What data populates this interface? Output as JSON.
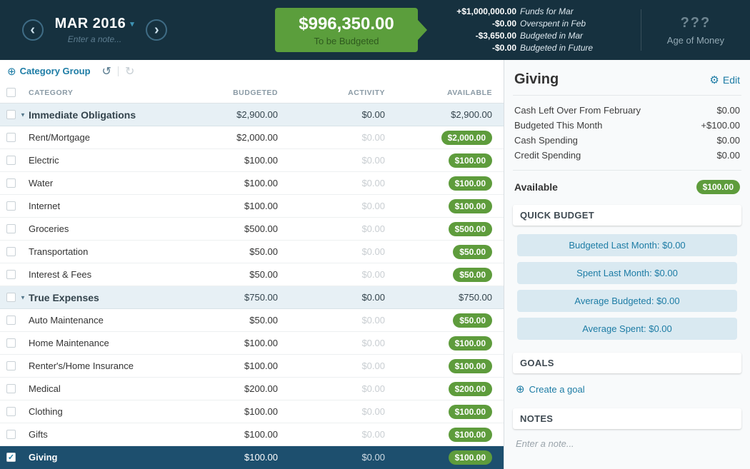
{
  "header": {
    "month_label": "MAR 2016",
    "note_placeholder": "Enter a note...",
    "tbb_amount": "$996,350.00",
    "tbb_label": "To be Budgeted",
    "breakdown": [
      {
        "amount": "+$1,000,000.00",
        "label": "Funds for Mar"
      },
      {
        "amount": "-$0.00",
        "label": "Overspent in Feb"
      },
      {
        "amount": "-$3,650.00",
        "label": "Budgeted in Mar"
      },
      {
        "amount": "-$0.00",
        "label": "Budgeted in Future"
      }
    ],
    "age_of_money_value": "???",
    "age_of_money_label": "Age of Money"
  },
  "toolbar": {
    "add_group_label": "Category Group"
  },
  "table": {
    "columns": {
      "category": "CATEGORY",
      "budgeted": "BUDGETED",
      "activity": "ACTIVITY",
      "available": "AVAILABLE"
    },
    "rows": [
      {
        "type": "group",
        "name": "Immediate Obligations",
        "budgeted": "$2,900.00",
        "activity": "$0.00",
        "available": "$2,900.00"
      },
      {
        "type": "category",
        "name": "Rent/Mortgage",
        "budgeted": "$2,000.00",
        "activity": "$0.00",
        "available": "$2,000.00"
      },
      {
        "type": "category",
        "name": "Electric",
        "budgeted": "$100.00",
        "activity": "$0.00",
        "available": "$100.00"
      },
      {
        "type": "category",
        "name": "Water",
        "budgeted": "$100.00",
        "activity": "$0.00",
        "available": "$100.00"
      },
      {
        "type": "category",
        "name": "Internet",
        "budgeted": "$100.00",
        "activity": "$0.00",
        "available": "$100.00"
      },
      {
        "type": "category",
        "name": "Groceries",
        "budgeted": "$500.00",
        "activity": "$0.00",
        "available": "$500.00"
      },
      {
        "type": "category",
        "name": "Transportation",
        "budgeted": "$50.00",
        "activity": "$0.00",
        "available": "$50.00"
      },
      {
        "type": "category",
        "name": "Interest & Fees",
        "budgeted": "$50.00",
        "activity": "$0.00",
        "available": "$50.00"
      },
      {
        "type": "group",
        "name": "True Expenses",
        "budgeted": "$750.00",
        "activity": "$0.00",
        "available": "$750.00"
      },
      {
        "type": "category",
        "name": "Auto Maintenance",
        "budgeted": "$50.00",
        "activity": "$0.00",
        "available": "$50.00"
      },
      {
        "type": "category",
        "name": "Home Maintenance",
        "budgeted": "$100.00",
        "activity": "$0.00",
        "available": "$100.00"
      },
      {
        "type": "category",
        "name": "Renter's/Home Insurance",
        "budgeted": "$100.00",
        "activity": "$0.00",
        "available": "$100.00"
      },
      {
        "type": "category",
        "name": "Medical",
        "budgeted": "$200.00",
        "activity": "$0.00",
        "available": "$200.00"
      },
      {
        "type": "category",
        "name": "Clothing",
        "budgeted": "$100.00",
        "activity": "$0.00",
        "available": "$100.00"
      },
      {
        "type": "category",
        "name": "Gifts",
        "budgeted": "$100.00",
        "activity": "$0.00",
        "available": "$100.00"
      },
      {
        "type": "category",
        "name": "Giving",
        "budgeted": "$100.00",
        "activity": "$0.00",
        "available": "$100.00",
        "selected": true
      }
    ]
  },
  "inspector": {
    "title": "Giving",
    "edit_label": "Edit",
    "stats": [
      {
        "label": "Cash Left Over From February",
        "value": "$0.00"
      },
      {
        "label": "Budgeted This Month",
        "value": "+$100.00"
      },
      {
        "label": "Cash Spending",
        "value": "$0.00"
      },
      {
        "label": "Credit Spending",
        "value": "$0.00"
      }
    ],
    "available_label": "Available",
    "available_value": "$100.00",
    "quick_budget": {
      "title": "QUICK BUDGET",
      "buttons": [
        "Budgeted Last Month: $0.00",
        "Spent Last Month: $0.00",
        "Average Budgeted: $0.00",
        "Average Spent: $0.00"
      ]
    },
    "goals": {
      "title": "GOALS",
      "create_label": "Create a goal"
    },
    "notes": {
      "title": "NOTES",
      "placeholder": "Enter a note..."
    }
  },
  "colors": {
    "header_bg": "#16313f",
    "budget_green": "#5b9e3c",
    "accent_blue": "#1d7ca5",
    "selected_row": "#1d4f6e",
    "group_row_bg": "#e7f0f5"
  }
}
